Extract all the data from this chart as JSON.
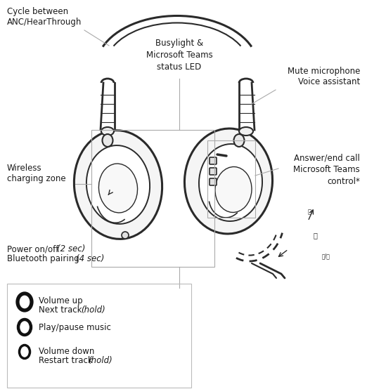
{
  "bg_color": "#ffffff",
  "text_color": "#1a1a1a",
  "line_color": "#2a2a2a",
  "gray_line": "#aaaaaa",
  "fig_width": 5.22,
  "fig_height": 5.54,
  "dpi": 100,
  "labels": {
    "cycle": "Cycle between\nANC/HearThrough",
    "busylight": "Busylight &\nMicrosoft Teams\nstatus LED",
    "mute": "Mute microphone\nVoice assistant",
    "wireless": "Wireless\ncharging zone",
    "answer": "Answer/end call\nMicrosoft Teams\ncontrol*",
    "power_normal1": "Power on/off ",
    "power_italic1": "(2 sec)",
    "power_normal2": "Bluetooth pairing ",
    "power_italic2": "(4 sec)",
    "vol_up_1": "Volume up",
    "vol_up_2_normal": "Next track ",
    "vol_up_2_italic": "(hold)",
    "play": "Play/pause music",
    "vol_dn_1": "Volume down",
    "vol_dn_2_normal": "Restart track ",
    "vol_dn_2_italic": "(hold)"
  },
  "font_size": 8.5,
  "font_family": "DejaVu Sans"
}
